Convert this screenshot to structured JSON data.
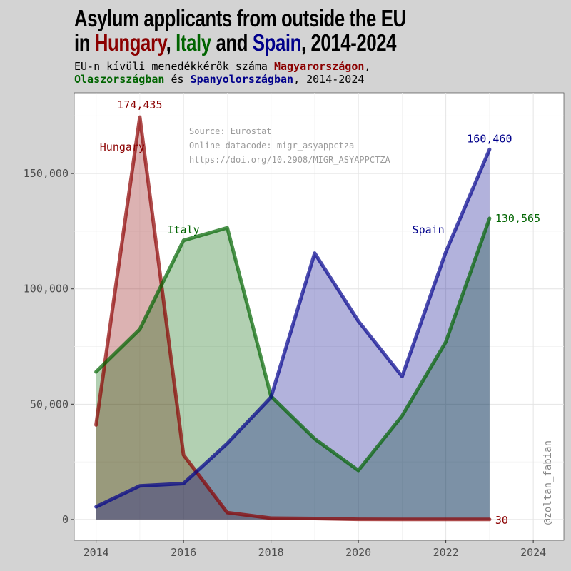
{
  "title": {
    "line1": "Asylum applicants from outside the EU",
    "line2_prefix": "in ",
    "hungary": "Hungary",
    "sep1": ", ",
    "italy": "Italy",
    "sep2": " and ",
    "spain": "Spain",
    "line2_suffix": ", 2014-2024"
  },
  "subtitle": {
    "line1_prefix": "EU-n kívüli menedékkérők száma ",
    "hungary": "Magyarországon",
    "line1_suffix": ",",
    "italy": "Olaszországban",
    "mid": " és ",
    "spain": "Spanyolországban",
    "line2_suffix": ", 2014-2024"
  },
  "source": {
    "line1": "Source: Eurostat",
    "line2": "Online datacode: migr_asyappctza",
    "line3": "https://doi.org/10.2908/MIGR_ASYAPPCTZA"
  },
  "watermark": "@zoltan_fabian",
  "colors": {
    "hungary": "#8b0000",
    "italy": "#006400",
    "spain": "#00008b",
    "panel": "#ffffff",
    "background": "#d3d3d3"
  },
  "chart_data": {
    "type": "area",
    "title": "Asylum applicants from outside the EU in Hungary, Italy and Spain, 2014-2024",
    "xlim": [
      2013.5,
      2024.7
    ],
    "ylim": [
      -9000,
      185000
    ],
    "x_ticks": [
      2014,
      2016,
      2018,
      2020,
      2022,
      2024
    ],
    "x_tick_labels": [
      "2014",
      "2016",
      "2018",
      "2020",
      "2022",
      "2024"
    ],
    "y_ticks": [
      0,
      50000,
      100000,
      150000
    ],
    "y_tick_labels": [
      "0",
      "50,000",
      "100,000",
      "150,000"
    ],
    "grid": true,
    "legend": "direct labels",
    "x": [
      2014,
      2015,
      2016,
      2017,
      2018,
      2019,
      2020,
      2021,
      2022,
      2023
    ],
    "series": [
      {
        "name": "Hungary",
        "color": "#8b0000",
        "values": [
          41000,
          174435,
          28000,
          3000,
          600,
          450,
          100,
          50,
          40,
          30
        ],
        "label": "Hungary",
        "end_label": "30",
        "peak_label": "174,435"
      },
      {
        "name": "Italy",
        "color": "#006400",
        "values": [
          64000,
          82500,
          121000,
          126500,
          53500,
          35000,
          21300,
          45000,
          77000,
          130565
        ],
        "label": "Italy",
        "end_label": "130,565"
      },
      {
        "name": "Spain",
        "color": "#00008b",
        "values": [
          5500,
          14600,
          15600,
          33000,
          53000,
          115500,
          86000,
          62000,
          116000,
          160460
        ],
        "label": "Spain",
        "end_label": "160,460"
      }
    ]
  }
}
